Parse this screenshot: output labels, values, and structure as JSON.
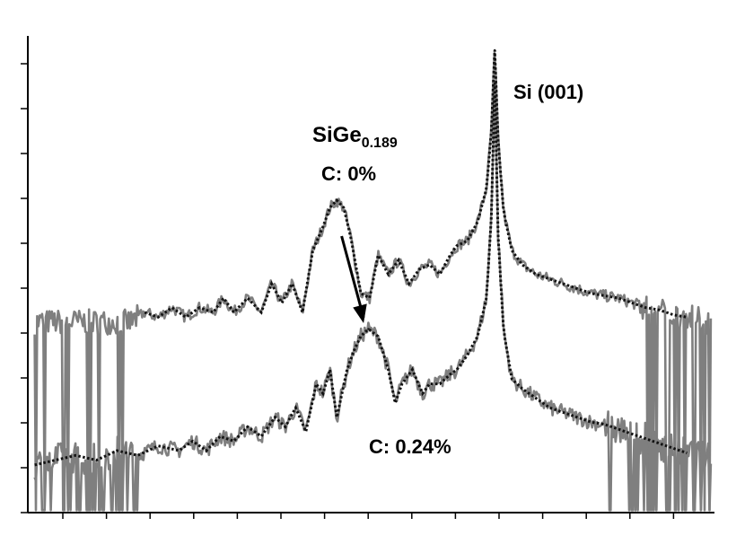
{
  "chart_data": {
    "type": "line",
    "title": "",
    "xlabel": "",
    "ylabel": "",
    "xlim": [
      0,
      100
    ],
    "ylim": [
      0,
      100
    ],
    "log_y": true,
    "grid": false,
    "legend": "none",
    "tick_labels_visible": false,
    "colors": {
      "measured": "#7f7f7f",
      "simulated": "#111111"
    },
    "annotations": {
      "phase_main": "SiGe",
      "phase_sub": "0.189",
      "upper_condition": "C: 0%",
      "lower_condition": "C: 0.24%",
      "substrate_peak": "Si (001)"
    },
    "arrow": {
      "from": [
        45.7,
        58.0
      ],
      "to": [
        48.9,
        40.5
      ]
    },
    "peaks": [
      {
        "series": "upper",
        "x": 68.0,
        "y": 97.0
      },
      {
        "series": "upper",
        "x": 45.0,
        "y": 65.5
      },
      {
        "series": "lower",
        "x": 68.0,
        "y": 90.0
      },
      {
        "series": "lower",
        "x": 49.6,
        "y": 38.5
      }
    ],
    "series": [
      {
        "role": "upper",
        "noise": 1.2,
        "dropouts": [
          [
            1.0,
            16.0
          ],
          [
            89.0,
            99.5
          ]
        ],
        "x": [
          1,
          6,
          11,
          15,
          17,
          19,
          21,
          23,
          25,
          27,
          28.5,
          30,
          32,
          34,
          35.5,
          37,
          38.5,
          40,
          41.5,
          43,
          44,
          45,
          46,
          47,
          48.5,
          49.8,
          51,
          52.5,
          54,
          55.5,
          57,
          58.5,
          60,
          61.5,
          62.5,
          64,
          65.5,
          66.8,
          67.5,
          68,
          68.5,
          69.3,
          70.5,
          72,
          74,
          76,
          78,
          80,
          82,
          84,
          86,
          88,
          90,
          92,
          94,
          96,
          99.5
        ],
        "y": [
          40,
          40,
          40,
          40,
          42,
          41,
          43,
          41,
          43,
          42,
          45,
          42,
          45,
          42,
          48,
          44,
          48,
          42,
          55,
          60,
          64,
          65.5,
          64,
          58,
          46,
          45,
          54,
          50,
          53,
          48,
          51,
          52,
          50,
          54,
          56,
          57,
          61,
          68,
          80,
          97,
          78,
          63,
          55,
          52,
          50,
          49,
          48,
          47,
          46,
          45.5,
          45,
          44,
          43,
          42.5,
          41.5,
          41,
          40
        ]
      },
      {
        "role": "lower",
        "noise": 1.6,
        "dropouts": [
          [
            0,
            16.0
          ],
          [
            84.0,
            99.5
          ]
        ],
        "x": [
          1,
          4,
          7,
          10,
          13,
          16,
          19,
          22,
          24,
          26,
          28,
          30,
          32,
          34,
          36,
          37.5,
          39,
          40.5,
          42,
          43,
          44,
          45,
          46.5,
          47.5,
          48.5,
          49.6,
          51,
          52.5,
          53.5,
          54.5,
          56,
          57.5,
          58.5,
          60,
          61.5,
          62.5,
          64,
          65.5,
          66.8,
          67.5,
          68,
          68.5,
          69.3,
          70.5,
          72,
          74,
          76,
          78,
          80,
          82,
          84,
          86,
          88,
          90,
          92,
          94,
          96,
          99.5
        ],
        "y": [
          10,
          11,
          12,
          11,
          13,
          12,
          14,
          13,
          15,
          13,
          16,
          15,
          18,
          16,
          20,
          18,
          22,
          17,
          27,
          25,
          30,
          20,
          30,
          34,
          37,
          38.5,
          37,
          30,
          23,
          27,
          30,
          25,
          27,
          27,
          29,
          30,
          33,
          37,
          45,
          62,
          90,
          58,
          38,
          28,
          26,
          24,
          22,
          21,
          20,
          19,
          18.5,
          17.5,
          16.5,
          15.5,
          14.5,
          13.5,
          12.5,
          11
        ]
      }
    ]
  }
}
